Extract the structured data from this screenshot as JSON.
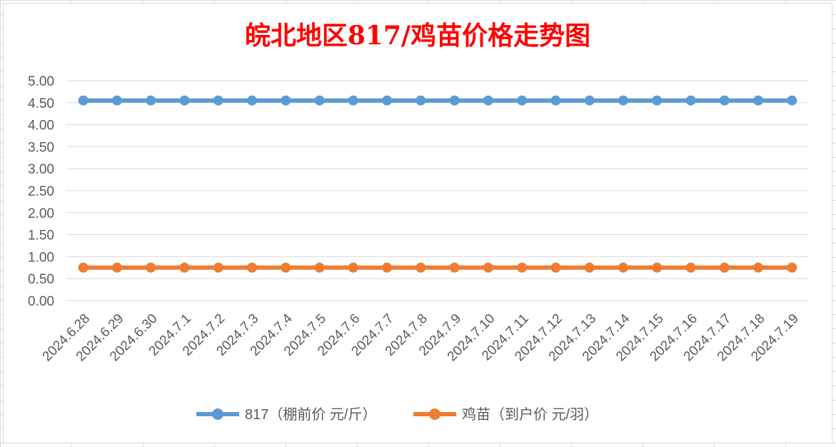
{
  "chart_data": {
    "type": "line",
    "title": "皖北地区817/鸡苗价格走势图",
    "categories": [
      "2024.6.28",
      "2024.6.29",
      "2024.6.30",
      "2024.7.1",
      "2024.7.2",
      "2024.7.3",
      "2024.7.4",
      "2024.7.5",
      "2024.7.6",
      "2024.7.7",
      "2024.7.8",
      "2024.7.9",
      "2024.7.10",
      "2024.7.11",
      "2024.7.12",
      "2024.7.13",
      "2024.7.14",
      "2024.7.15",
      "2024.7.16",
      "2024.7.17",
      "2024.7.18",
      "2024.7.19"
    ],
    "yticks": [
      "0.00",
      "0.50",
      "1.00",
      "1.50",
      "2.00",
      "2.50",
      "3.00",
      "3.50",
      "4.00",
      "4.50",
      "5.00"
    ],
    "ylim": [
      0,
      5
    ],
    "grid": true,
    "legend_position": "bottom",
    "series": [
      {
        "name": "817（棚前价 元/斤）",
        "color": "#5b9bd5",
        "values": [
          4.55,
          4.55,
          4.55,
          4.55,
          4.55,
          4.55,
          4.55,
          4.55,
          4.55,
          4.55,
          4.55,
          4.55,
          4.55,
          4.55,
          4.55,
          4.55,
          4.55,
          4.55,
          4.55,
          4.55,
          4.55,
          4.55
        ]
      },
      {
        "name": "鸡苗（到户价 元/羽）",
        "color": "#ed7d31",
        "values": [
          0.75,
          0.75,
          0.75,
          0.75,
          0.75,
          0.75,
          0.75,
          0.75,
          0.75,
          0.75,
          0.75,
          0.75,
          0.75,
          0.75,
          0.75,
          0.75,
          0.75,
          0.75,
          0.75,
          0.75,
          0.75,
          0.75
        ]
      }
    ],
    "title_color": "#ff0000"
  }
}
